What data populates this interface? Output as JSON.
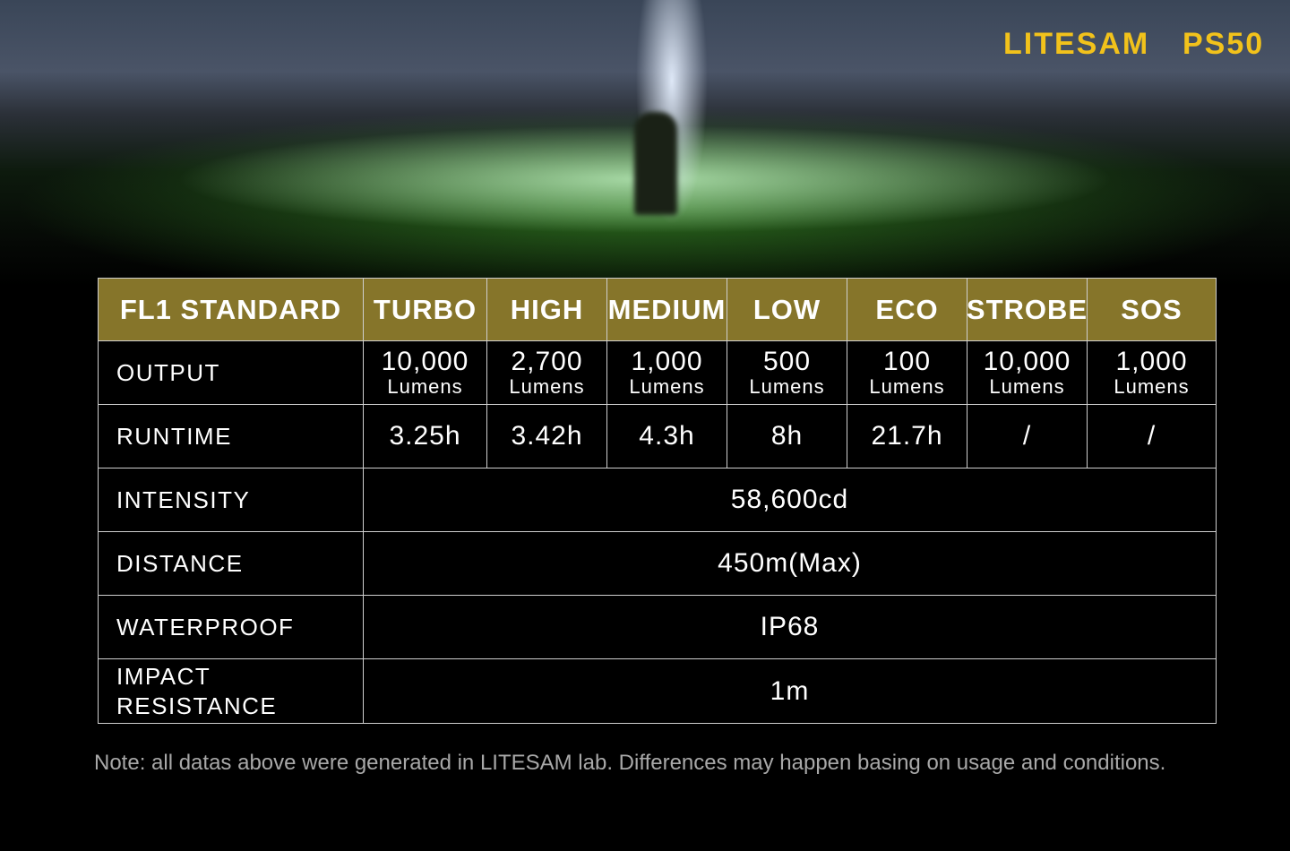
{
  "brand": "LITESAM",
  "model": "PS50",
  "table": {
    "header": [
      "FL1 STANDARD",
      "TURBO",
      "HIGH",
      "MEDIUM",
      "LOW",
      "ECO",
      "STROBE",
      "SOS"
    ],
    "rows": [
      {
        "label": "OUTPUT",
        "cells": [
          {
            "value": "10,000",
            "unit": "Lumens"
          },
          {
            "value": "2,700",
            "unit": "Lumens"
          },
          {
            "value": "1,000",
            "unit": "Lumens"
          },
          {
            "value": "500",
            "unit": "Lumens"
          },
          {
            "value": "100",
            "unit": "Lumens"
          },
          {
            "value": "10,000",
            "unit": "Lumens"
          },
          {
            "value": "1,000",
            "unit": "Lumens"
          }
        ]
      },
      {
        "label": "RUNTIME",
        "cells": [
          "3.25h",
          "3.42h",
          "4.3h",
          "8h",
          "21.7h",
          "/",
          "/"
        ]
      },
      {
        "label": "INTENSITY",
        "value": "58,600cd"
      },
      {
        "label": "DISTANCE",
        "value": "450m(Max)"
      },
      {
        "label": "WATERPROOF",
        "value": "IP68"
      },
      {
        "label": "IMPACT RESISTANCE",
        "value": "1m"
      }
    ]
  },
  "note": "Note: all datas above were generated in LITESAM lab. Differences may happen basing on usage and conditions."
}
